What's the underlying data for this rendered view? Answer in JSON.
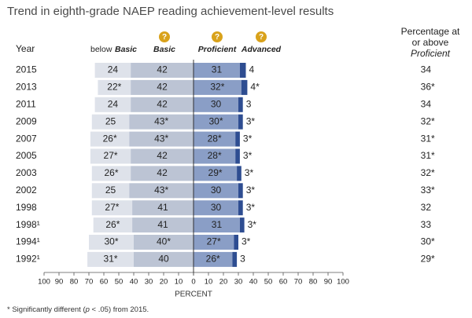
{
  "chart_data": {
    "type": "bar",
    "title": "Trend in eighth-grade NAEP reading achievement-level results",
    "row_header": "Year",
    "categories": [
      "2015",
      "2013",
      "2011",
      "2009",
      "2007",
      "2005",
      "2003",
      "2002",
      "1998",
      "1998¹",
      "1994¹",
      "1992¹"
    ],
    "series": [
      {
        "name": "below Basic",
        "values": [
          24,
          22,
          24,
          25,
          26,
          27,
          26,
          25,
          27,
          26,
          30,
          31
        ],
        "labels": [
          "24",
          "22*",
          "24",
          "25",
          "26*",
          "27*",
          "26*",
          "25",
          "27*",
          "26*",
          "30*",
          "31*"
        ],
        "color": "#dee2ea"
      },
      {
        "name": "Basic",
        "values": [
          42,
          42,
          42,
          43,
          43,
          42,
          42,
          43,
          41,
          41,
          40,
          40
        ],
        "labels": [
          "42",
          "42",
          "42",
          "43*",
          "43*",
          "42",
          "42",
          "43*",
          "41",
          "41",
          "40*",
          "40"
        ],
        "color": "#bcc4d4"
      },
      {
        "name": "Proficient",
        "values": [
          31,
          32,
          30,
          30,
          28,
          28,
          29,
          30,
          30,
          31,
          27,
          26
        ],
        "labels": [
          "31",
          "32*",
          "30",
          "30*",
          "28*",
          "28*",
          "29*",
          "30",
          "30",
          "31",
          "27*",
          "26*"
        ],
        "color": "#8a9ec6"
      },
      {
        "name": "Advanced",
        "values": [
          4,
          4,
          3,
          3,
          3,
          3,
          3,
          3,
          3,
          3,
          3,
          3
        ],
        "labels": [
          "4",
          "4*",
          "3",
          "3*",
          "3*",
          "3*",
          "3*",
          "3*",
          "3*",
          "3*",
          "3*",
          "3"
        ],
        "color": "#2e4d91"
      }
    ],
    "at_or_above_header": [
      "Percentage at",
      "or above",
      "Proficient"
    ],
    "at_or_above_labels": [
      "34",
      "36*",
      "34",
      "32*",
      "31*",
      "31*",
      "32*",
      "33*",
      "32",
      "33",
      "30*",
      "29*"
    ],
    "at_or_above_values": [
      34,
      36,
      34,
      32,
      31,
      31,
      32,
      33,
      32,
      33,
      30,
      29
    ],
    "xlabel": "PERCENT",
    "xlim": [
      -100,
      100
    ],
    "xticks": [
      -100,
      -90,
      -80,
      -70,
      -60,
      -50,
      -40,
      -30,
      -20,
      -10,
      0,
      10,
      20,
      30,
      40,
      50,
      60,
      70,
      80,
      90,
      100
    ],
    "xtick_labels": [
      "100",
      "90",
      "80",
      "70",
      "60",
      "50",
      "40",
      "30",
      "20",
      "10",
      "0",
      "10",
      "20",
      "30",
      "40",
      "50",
      "60",
      "70",
      "80",
      "90",
      "100"
    ],
    "help_icon_glyph": "?",
    "help_icon_color": "#d9a21b",
    "footnote": {
      "prefix": "* Significantly different (",
      "italic": "p",
      "suffix": " < .05) from 2015."
    }
  }
}
